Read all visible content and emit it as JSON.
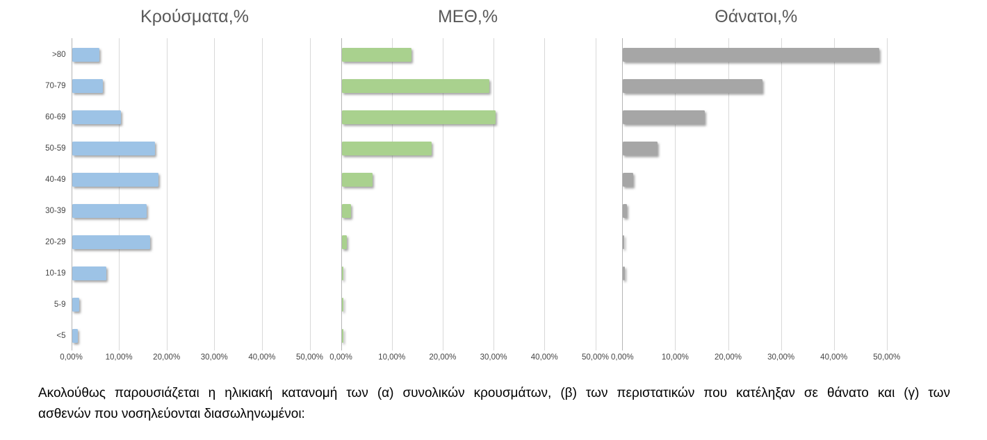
{
  "chart_data": [
    {
      "type": "bar",
      "orientation": "horizontal",
      "title": "Κρούσματα,%",
      "categories": [
        ">80",
        "70-79",
        "60-69",
        "50-59",
        "40-49",
        "30-39",
        "20-29",
        "10-19",
        "5-9",
        "<5"
      ],
      "values": [
        5.7,
        6.5,
        10.3,
        17.4,
        18.2,
        15.7,
        16.4,
        7.2,
        1.5,
        1.2
      ],
      "unit": "%",
      "xlim": [
        0,
        55
      ],
      "x_ticks": [
        0,
        10,
        20,
        30,
        40,
        50
      ],
      "x_tick_labels": [
        "0,00%",
        "10,00%",
        "20,00%",
        "30,00%",
        "40,00%",
        "50,00%"
      ],
      "bar_color": "#9DC3E6",
      "grid": true,
      "legend": false,
      "show_category_labels": true
    },
    {
      "type": "bar",
      "orientation": "horizontal",
      "title": "ΜΕΘ,%",
      "categories": [
        ">80",
        "70-79",
        "60-69",
        "50-59",
        "40-49",
        "30-39",
        "20-29",
        "10-19",
        "5-9",
        "<5"
      ],
      "values": [
        13.7,
        29.0,
        30.3,
        17.7,
        6.1,
        1.8,
        1.0,
        0.4,
        0.4,
        0.4
      ],
      "unit": "%",
      "xlim": [
        0,
        53
      ],
      "x_ticks": [
        0,
        10,
        20,
        30,
        40,
        50
      ],
      "x_tick_labels": [
        "0,00%",
        "10,00%",
        "20,00%",
        "30,00%",
        "40,00%",
        "50,00%"
      ],
      "bar_color": "#A9D18E",
      "grid": true,
      "legend": false,
      "show_category_labels": false
    },
    {
      "type": "bar",
      "orientation": "horizontal",
      "title": "Θάνατοι,%",
      "categories": [
        ">80",
        "70-79",
        "60-69",
        "50-59",
        "40-49",
        "30-39",
        "20-29",
        "10-19",
        "5-9",
        "<5"
      ],
      "values": [
        48.4,
        26.4,
        15.5,
        6.6,
        1.9,
        0.8,
        0.2,
        0.3,
        0,
        0
      ],
      "unit": "%",
      "xlim": [
        0,
        53
      ],
      "x_ticks": [
        0,
        10,
        20,
        30,
        40,
        50
      ],
      "x_tick_labels": [
        "0,00%",
        "10,00%",
        "20,00%",
        "30,00%",
        "40,00%",
        "50,00%"
      ],
      "bar_color": "#A6A6A6",
      "grid": true,
      "legend": false,
      "show_category_labels": false
    }
  ],
  "caption": "Ακολούθως παρουσιάζεται η ηλικιακή κατανομή των (α) συνολικών κρουσμάτων, (β) των περιστατικών που κατέληξαν σε θάνατο και (γ) των ασθενών που νοσηλεύονται διασωληνωμένοι:",
  "caption_lines": [
    "Ακολούθως παρουσιάζεται η ηλικιακή κατανομή των (α) συνολικών κρουσμάτων, (β) των περιστατικών που κατέληξαν σε θάνατο και (γ) των",
    "ασθενών που νοσηλεύονται διασωληνωμένοι:"
  ],
  "colors": {
    "title_text": "#595959",
    "axis_label_text": "#454545",
    "gridline": "#D8D8D8",
    "axis_line": "#B5B5B5",
    "background": "#FFFFFF"
  }
}
